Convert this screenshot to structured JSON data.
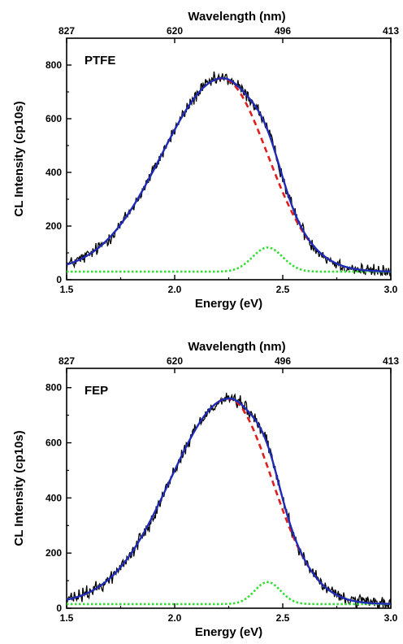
{
  "chart_data": [
    {
      "type": "line",
      "panel_label": "PTFE",
      "xlabel": "Energy (eV)",
      "ylabel": "CL Intensity (cp10s)",
      "top_axis_label": "Wavelength (nm)",
      "xlim": [
        1.5,
        3.0
      ],
      "ylim": [
        0,
        900
      ],
      "x_ticks": [
        "1.5",
        "2.0",
        "2.5",
        "3.0"
      ],
      "y_ticks": [
        "0",
        "200",
        "400",
        "600",
        "800"
      ],
      "top_ticks": [
        {
          "label": "827",
          "energy": 1.5
        },
        {
          "label": "620",
          "energy": 2.0
        },
        {
          "label": "496",
          "energy": 2.5
        },
        {
          "label": "413",
          "energy": 3.0
        }
      ],
      "baseline": 30,
      "components": {
        "main": {
          "amplitude": 720,
          "center": 2.22,
          "sigma_left": 0.28,
          "sigma_right": 0.21
        },
        "minor": {
          "amplitude": 90,
          "center": 2.43,
          "sigma": 0.07
        }
      },
      "series": [
        {
          "style": "measured",
          "color": "#000000",
          "x": [
            1.5,
            3.0
          ],
          "noise": 25
        },
        {
          "style": "total fit",
          "color": "#1f2bb5"
        },
        {
          "style": "main component",
          "color": "#dd1f1f"
        },
        {
          "style": "minor component",
          "color": "#33dd33"
        }
      ]
    },
    {
      "type": "line",
      "panel_label": "FEP",
      "xlabel": "Energy (eV)",
      "ylabel": "CL Intensity (cp10s)",
      "top_axis_label": "Wavelength (nm)",
      "xlim": [
        1.5,
        3.0
      ],
      "ylim": [
        0,
        870
      ],
      "x_ticks": [
        "1.5",
        "2.0",
        "2.5",
        "3.0"
      ],
      "y_ticks": [
        "0",
        "200",
        "400",
        "600",
        "800"
      ],
      "top_ticks": [
        {
          "label": "827",
          "energy": 1.5
        },
        {
          "label": "620",
          "energy": 2.0
        },
        {
          "label": "496",
          "energy": 2.5
        },
        {
          "label": "413",
          "energy": 3.0
        }
      ],
      "baseline": 15,
      "components": {
        "main": {
          "amplitude": 745,
          "center": 2.25,
          "sigma_left": 0.27,
          "sigma_right": 0.2
        },
        "minor": {
          "amplitude": 80,
          "center": 2.43,
          "sigma": 0.06
        }
      },
      "series": [
        {
          "style": "measured",
          "color": "#000000",
          "x": [
            1.5,
            3.0
          ],
          "noise": 25
        },
        {
          "style": "total fit",
          "color": "#1f2bb5"
        },
        {
          "style": "main component",
          "color": "#dd1f1f"
        },
        {
          "style": "minor component",
          "color": "#33dd33"
        }
      ]
    }
  ]
}
